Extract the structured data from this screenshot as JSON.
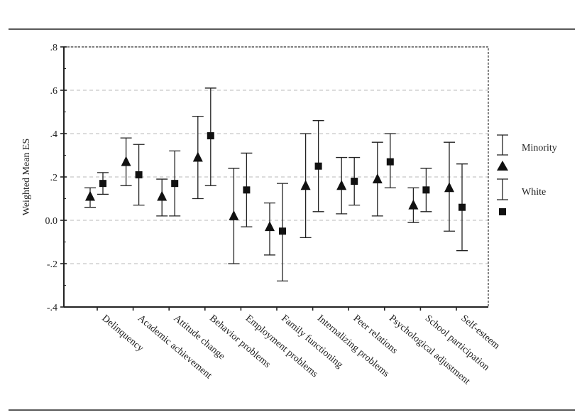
{
  "chart_data": {
    "type": "scatter",
    "ylabel": "Weighted Mean ES",
    "ylim": [
      -0.4,
      0.8
    ],
    "yticks": [
      0.8,
      0.6,
      0.4,
      0.2,
      0.0,
      -0.2,
      -0.4
    ],
    "ytick_labels": [
      ".8",
      ".6",
      ".4",
      ".2",
      "0.0",
      "-.2",
      "-.4"
    ],
    "grid": true,
    "legend_position": "right",
    "categories": [
      "Delinquency",
      "Academic achievement",
      "Attitude change",
      "Behavior problems",
      "Employment problems",
      "Family functioning",
      "Internalizing problems",
      "Peer relations",
      "Psychological adjustment",
      "School participation",
      "Self-esteem"
    ],
    "series": [
      {
        "name": "Minority",
        "marker": "triangle",
        "values": [
          0.11,
          0.27,
          0.11,
          0.29,
          0.02,
          -0.03,
          0.16,
          0.16,
          0.19,
          0.07,
          0.15
        ],
        "lower": [
          0.06,
          0.16,
          0.02,
          0.1,
          -0.2,
          -0.16,
          -0.08,
          0.03,
          0.02,
          -0.01,
          -0.05
        ],
        "upper": [
          0.15,
          0.38,
          0.19,
          0.48,
          0.24,
          0.08,
          0.4,
          0.29,
          0.36,
          0.15,
          0.36
        ]
      },
      {
        "name": "White",
        "marker": "square",
        "values": [
          0.17,
          0.21,
          0.17,
          0.39,
          0.14,
          -0.05,
          0.25,
          0.18,
          0.27,
          0.14,
          0.06
        ],
        "lower": [
          0.12,
          0.07,
          0.02,
          0.16,
          -0.03,
          -0.28,
          0.04,
          0.07,
          0.15,
          0.04,
          -0.14
        ],
        "upper": [
          0.22,
          0.35,
          0.32,
          0.61,
          0.31,
          0.17,
          0.46,
          0.29,
          0.4,
          0.24,
          0.26
        ]
      }
    ]
  }
}
